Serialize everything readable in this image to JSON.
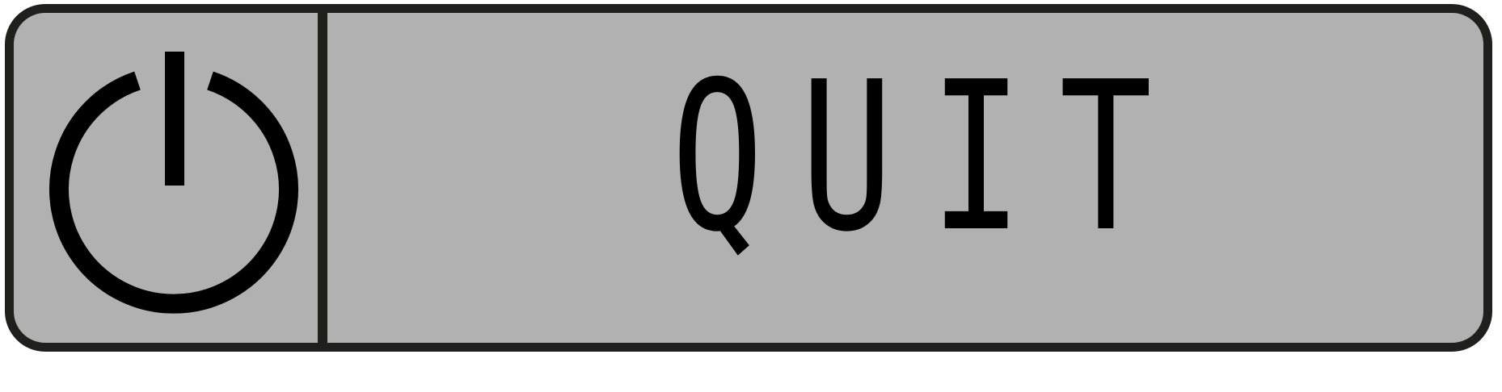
{
  "quit_button": {
    "icon": "power-icon",
    "label": "QUIT"
  },
  "colors": {
    "button_fill": "#b1b1b1",
    "border": "#1f1f1d",
    "text": "#000000"
  }
}
